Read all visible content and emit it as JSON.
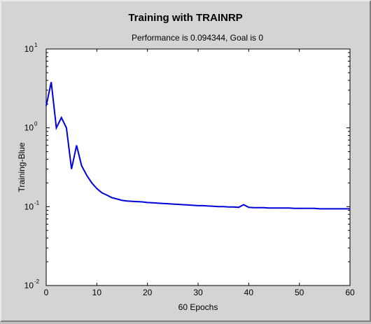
{
  "chart_data": {
    "type": "line",
    "title": "Training with TRAINRP",
    "subtitle": "Performance is 0.094344, Goal is 0",
    "xlabel": "60 Epochs",
    "ylabel": "Training-Blue",
    "xlim": [
      0,
      60
    ],
    "ylim": [
      0.01,
      10
    ],
    "yscale": "log",
    "grid": false,
    "x_ticks": [
      "0",
      "10",
      "20",
      "30",
      "40",
      "50",
      "60"
    ],
    "y_ticks": [
      {
        "base": "10",
        "exp": "-2",
        "value": 0.01
      },
      {
        "base": "10",
        "exp": "-1",
        "value": 0.1
      },
      {
        "base": "10",
        "exp": "0",
        "value": 1
      },
      {
        "base": "10",
        "exp": "1",
        "value": 10
      }
    ],
    "line_color": "#0000dd",
    "series": [
      {
        "name": "Training",
        "x": [
          0,
          1,
          2,
          3,
          4,
          5,
          6,
          7,
          8,
          9,
          10,
          11,
          12,
          13,
          14,
          15,
          16,
          17,
          18,
          19,
          20,
          21,
          22,
          23,
          24,
          25,
          26,
          27,
          28,
          29,
          30,
          31,
          32,
          33,
          34,
          35,
          36,
          37,
          38,
          39,
          40,
          41,
          42,
          43,
          44,
          45,
          46,
          47,
          48,
          49,
          50,
          51,
          52,
          53,
          54,
          55,
          56,
          57,
          58,
          59,
          60
        ],
        "y": [
          1.9,
          3.8,
          1.0,
          1.35,
          1.0,
          0.3,
          0.6,
          0.33,
          0.25,
          0.2,
          0.17,
          0.15,
          0.14,
          0.13,
          0.125,
          0.12,
          0.118,
          0.117,
          0.116,
          0.115,
          0.113,
          0.112,
          0.111,
          0.11,
          0.109,
          0.108,
          0.107,
          0.106,
          0.105,
          0.104,
          0.103,
          0.103,
          0.102,
          0.101,
          0.1,
          0.1,
          0.099,
          0.099,
          0.098,
          0.106,
          0.098,
          0.097,
          0.097,
          0.097,
          0.096,
          0.096,
          0.096,
          0.096,
          0.096,
          0.095,
          0.095,
          0.095,
          0.095,
          0.095,
          0.094,
          0.094,
          0.094,
          0.094,
          0.094,
          0.094,
          0.094
        ]
      }
    ]
  }
}
